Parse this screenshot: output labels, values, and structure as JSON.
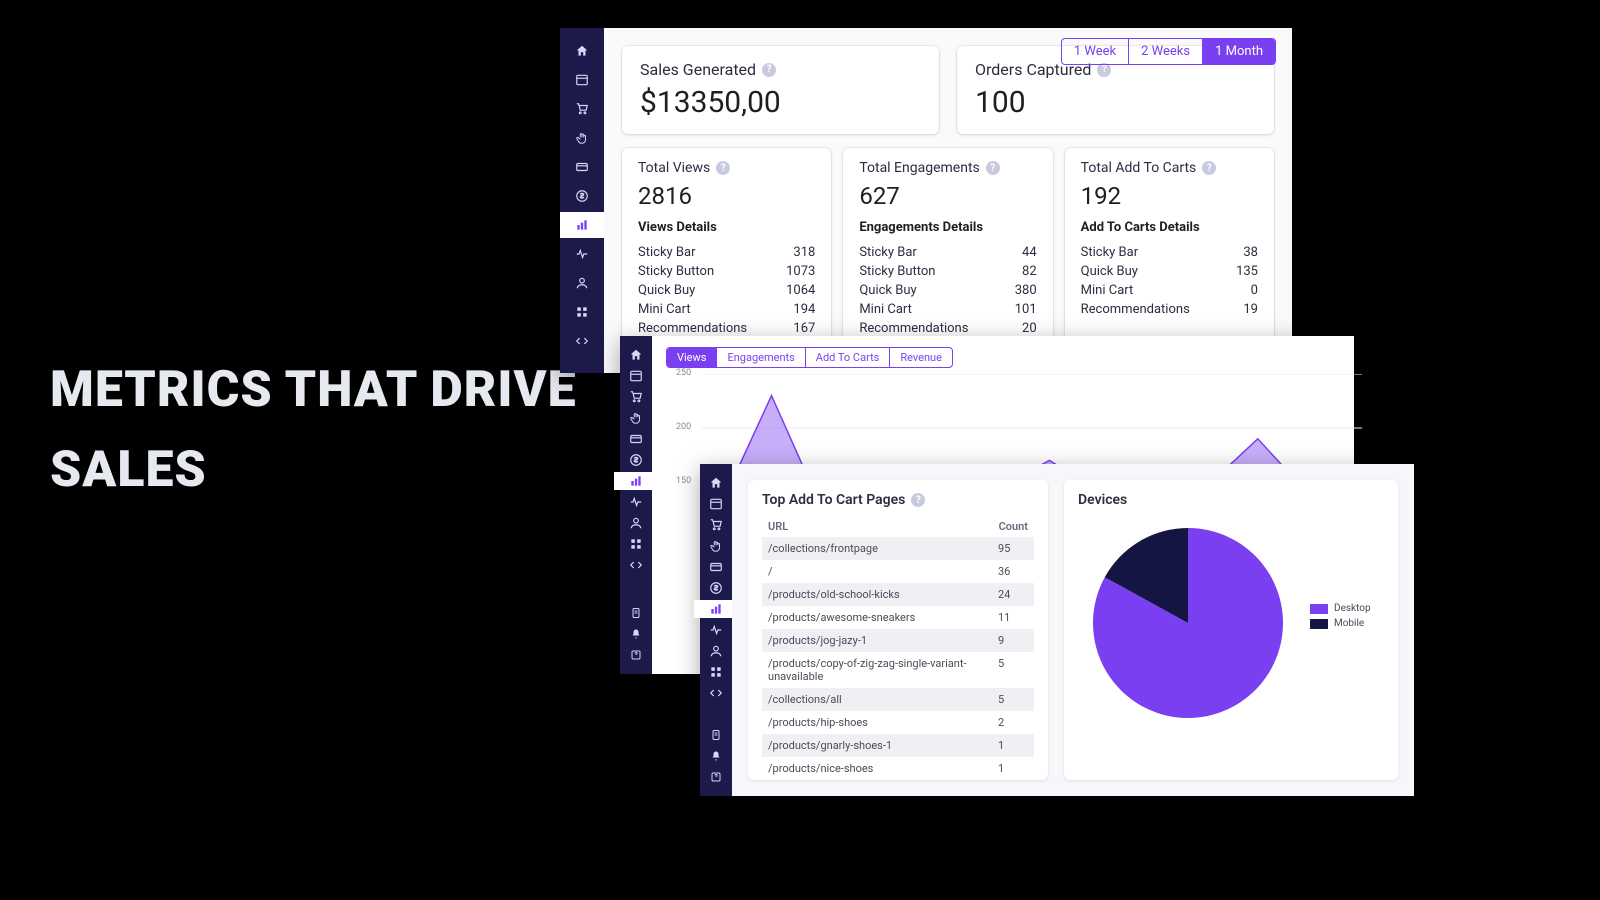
{
  "headline_line1": "METRICS THAT DRIVE",
  "headline_line2": "SALES",
  "colors": {
    "accent": "#7b3ff2",
    "sidebar_bg": "#1b1a4a",
    "page_bg": "#000000",
    "card_bg": "#ffffff",
    "panel_body_bg": "#fafafa",
    "text_dark": "#2d2d42",
    "chart_fill": "#9b6bf4",
    "chart_stroke": "#7b3ff2"
  },
  "sidebar_icons": [
    "home",
    "window",
    "cart",
    "hand",
    "card",
    "dollar",
    "chart",
    "pulse",
    "user",
    "grid",
    "code"
  ],
  "sidebar_bottom_icons": [
    "doc",
    "bell",
    "help"
  ],
  "sidebar_active_icon": "chart",
  "period_tabs": [
    "1 Week",
    "2 Weeks",
    "1 Month"
  ],
  "period_active": "1 Month",
  "summary": {
    "sales_title": "Sales Generated",
    "sales_value": "$13350,00",
    "orders_title": "Orders Captured",
    "orders_value": "100"
  },
  "stats": [
    {
      "title": "Total Views",
      "value": "2816",
      "details_label": "Views Details",
      "details": [
        {
          "label": "Sticky Bar",
          "value": "318"
        },
        {
          "label": "Sticky Button",
          "value": "1073"
        },
        {
          "label": "Quick Buy",
          "value": "1064"
        },
        {
          "label": "Mini Cart",
          "value": "194"
        },
        {
          "label": "Recommendations",
          "value": "167"
        }
      ]
    },
    {
      "title": "Total Engagements",
      "value": "627",
      "details_label": "Engagements Details",
      "details": [
        {
          "label": "Sticky Bar",
          "value": "44"
        },
        {
          "label": "Sticky Button",
          "value": "82"
        },
        {
          "label": "Quick Buy",
          "value": "380"
        },
        {
          "label": "Mini Cart",
          "value": "101"
        },
        {
          "label": "Recommendations",
          "value": "20"
        }
      ]
    },
    {
      "title": "Total Add To Carts",
      "value": "192",
      "details_label": "Add To Carts Details",
      "details": [
        {
          "label": "Sticky Bar",
          "value": "38"
        },
        {
          "label": "Quick Buy",
          "value": "135"
        },
        {
          "label": "Mini Cart",
          "value": "0"
        },
        {
          "label": "Recommendations",
          "value": "19"
        }
      ]
    }
  ],
  "chart": {
    "tabs": [
      "Views",
      "Engagements",
      "Add To Carts",
      "Revenue"
    ],
    "active_tab": "Views",
    "ylim": [
      150,
      250
    ],
    "ytick_step": 50,
    "ytick_labels": [
      "250",
      "200",
      "150"
    ],
    "type": "area",
    "fill_color": "#9b6bf4",
    "stroke_color": "#7b3ff2",
    "grid_color": "#eeeeee",
    "points": [
      150,
      160,
      230,
      158,
      155,
      165,
      150,
      152,
      150,
      152,
      170,
      150,
      155,
      158,
      150,
      160,
      190,
      155,
      150,
      150
    ]
  },
  "table": {
    "title": "Top Add To Cart Pages",
    "columns": [
      "URL",
      "Count"
    ],
    "rows": [
      {
        "url": "/collections/frontpage",
        "count": "95"
      },
      {
        "url": "/",
        "count": "36"
      },
      {
        "url": "/products/old-school-kicks",
        "count": "24"
      },
      {
        "url": "/products/awesome-sneakers",
        "count": "11"
      },
      {
        "url": "/products/jog-jazy-1",
        "count": "9"
      },
      {
        "url": "/products/copy-of-zig-zag-single-variant-unavailable",
        "count": "5"
      },
      {
        "url": "/collections/all",
        "count": "5"
      },
      {
        "url": "/products/hip-shoes",
        "count": "2"
      },
      {
        "url": "/products/gnarly-shoes-1",
        "count": "1"
      },
      {
        "url": "/products/nice-shoes",
        "count": "1"
      }
    ]
  },
  "devices": {
    "title": "Devices",
    "type": "pie",
    "slices": [
      {
        "label": "Desktop",
        "color": "#7b3ff2",
        "value": 83
      },
      {
        "label": "Mobile",
        "color": "#151543",
        "value": 17
      }
    ]
  }
}
